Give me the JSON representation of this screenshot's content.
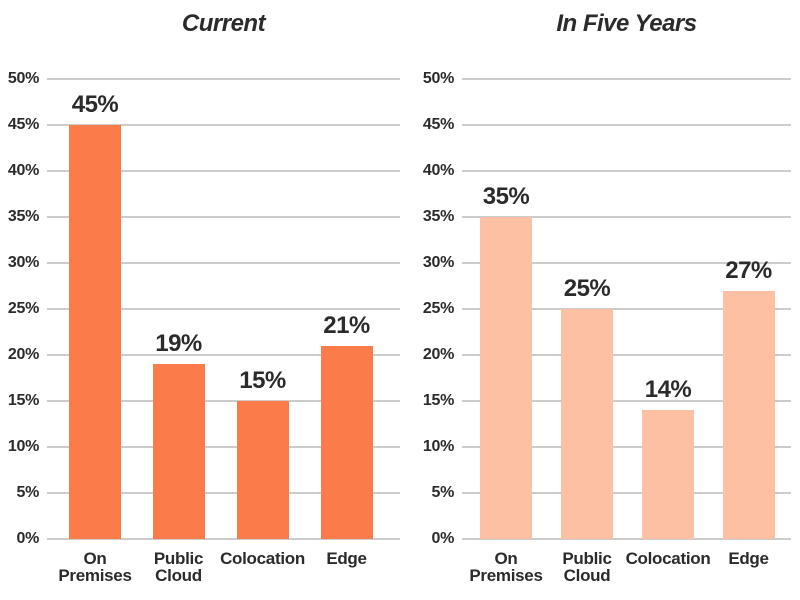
{
  "page": {
    "background": "#FFFFFF"
  },
  "colors": {
    "bar_current": "#FB7B4B",
    "bar_future": "#FDC0A2",
    "gridline": "#CCCCCC",
    "text": "#2B2B2B"
  },
  "chart_data": [
    {
      "type": "bar",
      "title": "Current",
      "categories": [
        "On\nPremises",
        "Public\nCloud",
        "Colocation",
        "Edge"
      ],
      "values": [
        45,
        19,
        15,
        21
      ],
      "data_labels": [
        "45%",
        "19%",
        "15%",
        "21%"
      ],
      "ytick_labels": [
        "0%",
        "5%",
        "10%",
        "15%",
        "20%",
        "25%",
        "30%",
        "35%",
        "40%",
        "45%",
        "50%"
      ],
      "bar_color": "#FB7B4B",
      "xlabel": "",
      "ylabel": "",
      "ylim": [
        0,
        50
      ],
      "ytick_step": 5,
      "grid": true,
      "legend": "none"
    },
    {
      "type": "bar",
      "title": "In Five Years",
      "categories": [
        "On\nPremises",
        "Public\nCloud",
        "Colocation",
        "Edge"
      ],
      "values": [
        35,
        25,
        14,
        27
      ],
      "data_labels": [
        "35%",
        "25%",
        "14%",
        "27%"
      ],
      "ytick_labels": [
        "0%",
        "5%",
        "10%",
        "15%",
        "20%",
        "25%",
        "30%",
        "35%",
        "40%",
        "45%",
        "50%"
      ],
      "bar_color": "#FDC0A2",
      "xlabel": "",
      "ylabel": "",
      "ylim": [
        0,
        50
      ],
      "ytick_step": 5,
      "grid": true,
      "legend": "none"
    }
  ]
}
